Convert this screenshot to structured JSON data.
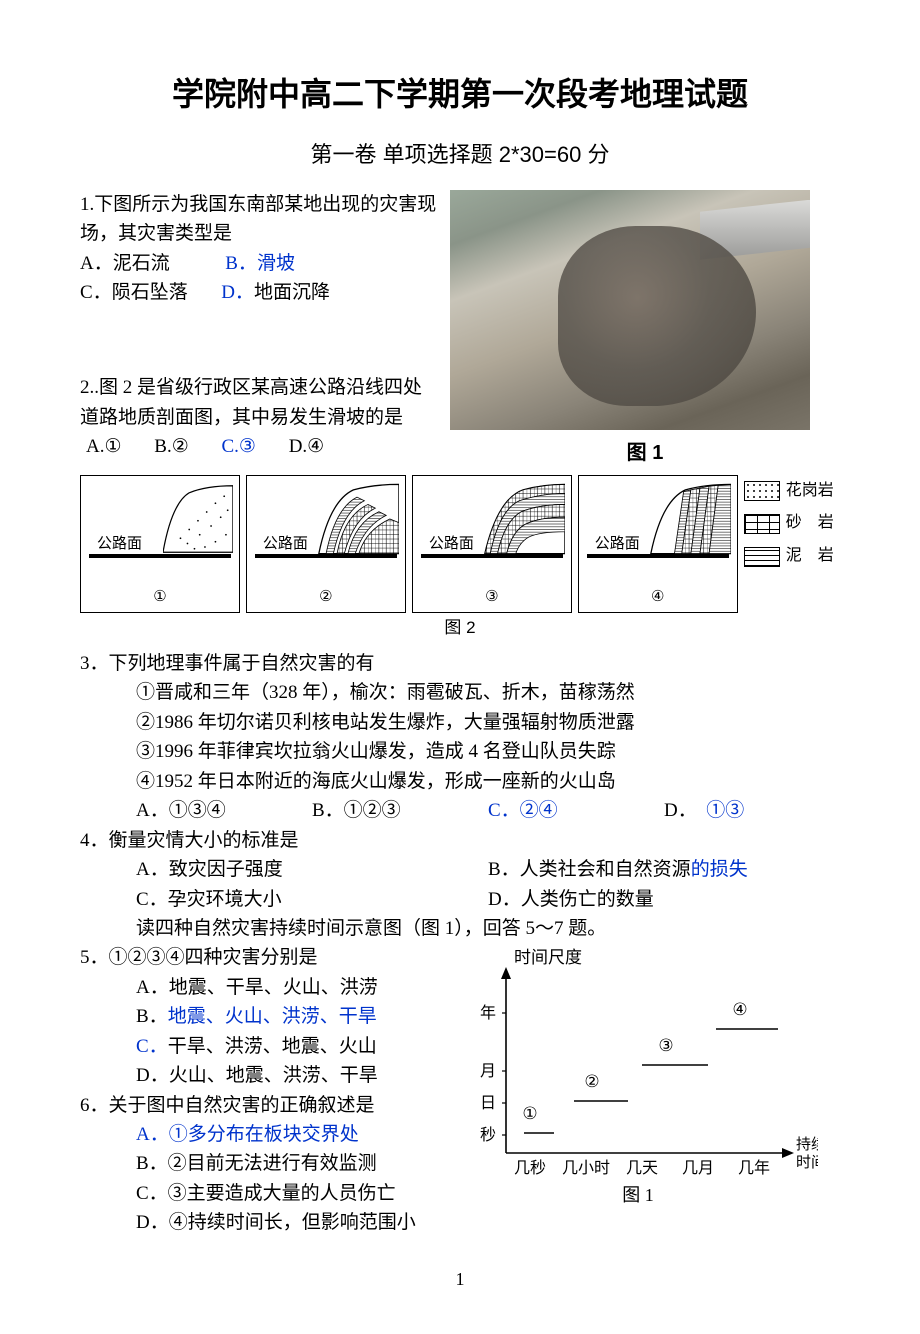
{
  "title": "学院附中高二下学期第一次段考地理试题",
  "subtitle": "第一卷  单项选择题 2*30=60 分",
  "q1": {
    "stem1": "1.下图所示为我国东南部某地出现的灾害现",
    "stem2": "场，其灾害类型是",
    "optA_lbl": "A．",
    "optA": "泥石流",
    "optB_lbl": "B．",
    "optB": "滑坡",
    "optC_lbl": "C．",
    "optC": "陨石坠落",
    "optD_lbl": "D．",
    "optD": "地面沉降",
    "img1_caption": "图 1"
  },
  "q2": {
    "stem1": "2..图 2 是省级行政区某高速公路沿线四处",
    "stem2": "道路地质剖面图，其中易发生滑坡的是",
    "optA": "A.①",
    "optB": "B.②",
    "optC": "C.③",
    "optD": "D.④",
    "road_label": "公路面",
    "nums": [
      "①",
      "②",
      "③",
      "④"
    ],
    "legend": {
      "granite": "花岗岩",
      "sandstone": "砂　岩",
      "mudstone": "泥　岩"
    },
    "fig2_caption": "图 2"
  },
  "q3": {
    "stem": "3．下列地理事件属于自然灾害的有",
    "s1": "①晋咸和三年（328 年），榆次：雨雹破瓦、折木，苗稼荡然",
    "s2": "②1986 年切尔诺贝利核电站发生爆炸，大量强辐射物质泄露",
    "s3": "③1996 年菲律宾坎拉翁火山爆发，造成 4 名登山队员失踪",
    "s4": "④1952 年日本附近的海底火山爆发，形成一座新的火山岛",
    "optA": "A．①③④",
    "optB": "B．①②③",
    "optC": "C．②④",
    "optD": "D．",
    "optD_blue": "①③"
  },
  "q4": {
    "stem": "4．衡量灾情大小的标准是",
    "optA": "A．致灾因子强度",
    "optB_pre": "B．人类社会和自然资源",
    "optB_blue": "的损失",
    "optC": "C．孕灾环境大小",
    "optD": "D．人类伤亡的数量",
    "note": "读四种自然灾害持续时间示意图（图 1），回答 5～7 题。"
  },
  "q5": {
    "stem": "5．①②③④四种灾害分别是",
    "optA": "A．地震、干旱、火山、洪涝",
    "optB_lbl": "B．",
    "optB_blue": "地震、火山、洪涝、干旱",
    "optC_lbl": "C．",
    "optC": "干旱、洪涝、地震、火山",
    "optD": "D．火山、地震、洪涝、干旱"
  },
  "q6": {
    "stem": "6．关于图中自然灾害的正确叙述是",
    "optA_lbl": "A．",
    "optA_blue": "①多分布在板块交界处",
    "optB": "B．②目前无法进行有效监测",
    "optC": "C．③主要造成大量的人员伤亡",
    "optD": "D．④持续时间长，但影响范围小"
  },
  "chart": {
    "type": "step-scatter",
    "y_axis_label": "时间尺度",
    "x_axis_label_l1": "持续",
    "x_axis_label_l2": "时间",
    "y_ticks": [
      "秒",
      "日",
      "月",
      "年"
    ],
    "x_ticks": [
      "几秒",
      "几小时",
      "几天",
      "几月",
      "几年"
    ],
    "series": [
      {
        "label": "①",
        "x_pos": 72,
        "y_pos": 176,
        "line_x1": 66,
        "line_x2": 96
      },
      {
        "label": "②",
        "x_pos": 134,
        "y_pos": 144,
        "line_x1": 116,
        "line_x2": 170
      },
      {
        "label": "③",
        "x_pos": 208,
        "y_pos": 108,
        "line_x1": 184,
        "line_x2": 250
      },
      {
        "label": "④",
        "x_pos": 282,
        "y_pos": 72,
        "line_x1": 258,
        "line_x2": 320
      }
    ],
    "axis_color": "#000000",
    "line_width": 1.6,
    "caption": "图 1"
  },
  "page_number": "1",
  "colors": {
    "link_blue": "#0033cc",
    "text": "#000000",
    "bg": "#ffffff"
  }
}
